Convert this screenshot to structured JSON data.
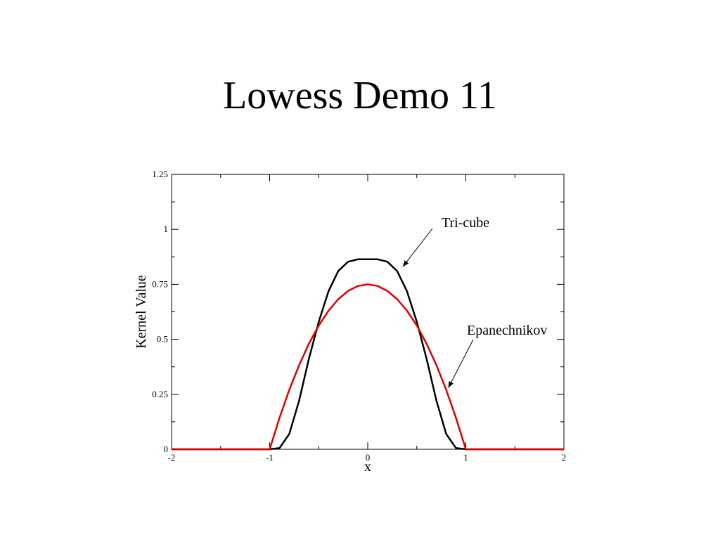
{
  "slide": {
    "title": "Lowess Demo 11"
  },
  "chart_data": {
    "type": "line",
    "title": "",
    "xlabel": "x",
    "ylabel": "Kernel Value",
    "xlim": [
      -2,
      2
    ],
    "ylim": [
      0,
      1.25
    ],
    "xticks": [
      -2,
      -1,
      0,
      1,
      2
    ],
    "xtick_labels": [
      "-2",
      "-1",
      "0",
      "1",
      "2"
    ],
    "yticks": [
      0,
      0.25,
      0.5,
      0.75,
      1,
      1.25
    ],
    "ytick_labels": [
      "0",
      "0.25",
      "0.5",
      "0.75",
      "1",
      "1.25"
    ],
    "grid": false,
    "legend": "none",
    "series": [
      {
        "name": "Tri-cube",
        "color": "#000000",
        "x": [
          -2,
          -1,
          -0.9,
          -0.8,
          -0.7,
          -0.6,
          -0.5,
          -0.4,
          -0.3,
          -0.2,
          -0.1,
          0,
          0.1,
          0.2,
          0.3,
          0.4,
          0.5,
          0.6,
          0.7,
          0.8,
          0.9,
          1,
          2
        ],
        "y": [
          0,
          0,
          0.0054,
          0.0698,
          0.2213,
          0.4114,
          0.5797,
          0.7187,
          0.8108,
          0.8529,
          0.8638,
          0.8642,
          0.8638,
          0.8529,
          0.8108,
          0.7187,
          0.5797,
          0.4114,
          0.2213,
          0.0698,
          0.0054,
          0,
          0
        ]
      },
      {
        "name": "Epanechnikov",
        "color": "#e00000",
        "x": [
          -2,
          -1,
          -0.9,
          -0.8,
          -0.7,
          -0.6,
          -0.5,
          -0.4,
          -0.3,
          -0.2,
          -0.1,
          0,
          0.1,
          0.2,
          0.3,
          0.4,
          0.5,
          0.6,
          0.7,
          0.8,
          0.9,
          1,
          2
        ],
        "y": [
          0,
          0,
          0.1425,
          0.27,
          0.3825,
          0.48,
          0.5625,
          0.63,
          0.6825,
          0.72,
          0.7425,
          0.75,
          0.7425,
          0.72,
          0.6825,
          0.63,
          0.5625,
          0.48,
          0.3825,
          0.27,
          0.1425,
          0,
          0
        ]
      }
    ],
    "annotations": [
      {
        "text": "Tri-cube",
        "series": 0
      },
      {
        "text": "Epanechnikov",
        "series": 1
      }
    ]
  }
}
